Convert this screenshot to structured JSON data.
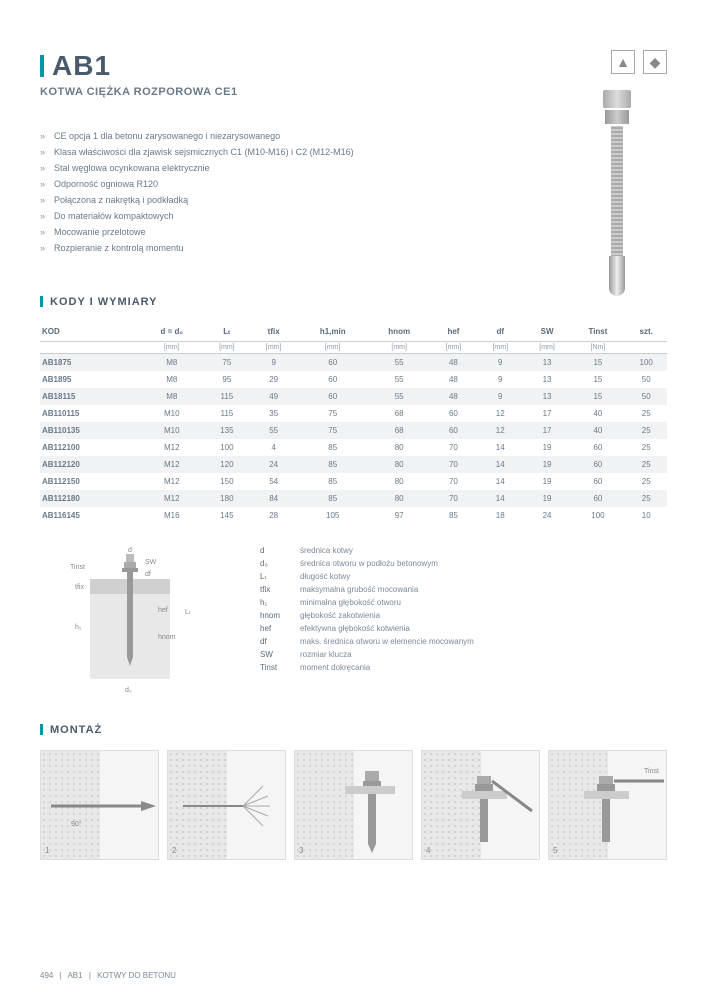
{
  "title": "AB1",
  "subtitle": "KOTWA CIĘŻKA ROZPOROWA CE1",
  "features": [
    "CE opcja 1 dla betonu zarysowanego i niezarysowanego",
    "Klasa właściwości dla zjawisk sejsmicznych C1 (M10-M16) i C2 (M12-M16)",
    "Stal węglowa ocynkowana elektrycznie",
    "Odporność ogniowa R120",
    "Połączona z nakrętką i podkładką",
    "Do materiałów kompaktowych",
    "Mocowanie przelotowe",
    "Rozpieranie z kontrolą momentu"
  ],
  "section1": "KODY I WYMIARY",
  "section2": "MONTAŻ",
  "table": {
    "headers": [
      "KOD",
      "d = d₀",
      "Lₜ",
      "tfix",
      "h1,min",
      "hnom",
      "hef",
      "df",
      "SW",
      "Tinst",
      "szt."
    ],
    "units": [
      "",
      "[mm]",
      "[mm]",
      "[mm]",
      "[mm]",
      "[mm]",
      "[mm]",
      "[mm]",
      "[mm]",
      "[Nm]",
      ""
    ],
    "rows": [
      [
        "AB1875",
        "M8",
        "75",
        "9",
        "60",
        "55",
        "48",
        "9",
        "13",
        "15",
        "100"
      ],
      [
        "AB1895",
        "M8",
        "95",
        "29",
        "60",
        "55",
        "48",
        "9",
        "13",
        "15",
        "50"
      ],
      [
        "AB18115",
        "M8",
        "115",
        "49",
        "60",
        "55",
        "48",
        "9",
        "13",
        "15",
        "50"
      ],
      [
        "AB110115",
        "M10",
        "115",
        "35",
        "75",
        "68",
        "60",
        "12",
        "17",
        "40",
        "25"
      ],
      [
        "AB110135",
        "M10",
        "135",
        "55",
        "75",
        "68",
        "60",
        "12",
        "17",
        "40",
        "25"
      ],
      [
        "AB112100",
        "M12",
        "100",
        "4",
        "85",
        "80",
        "70",
        "14",
        "19",
        "60",
        "25"
      ],
      [
        "AB112120",
        "M12",
        "120",
        "24",
        "85",
        "80",
        "70",
        "14",
        "19",
        "60",
        "25"
      ],
      [
        "AB112150",
        "M12",
        "150",
        "54",
        "85",
        "80",
        "70",
        "14",
        "19",
        "60",
        "25"
      ],
      [
        "AB112180",
        "M12",
        "180",
        "84",
        "85",
        "80",
        "70",
        "14",
        "19",
        "60",
        "25"
      ],
      [
        "AB116145",
        "M16",
        "145",
        "28",
        "105",
        "97",
        "85",
        "18",
        "24",
        "100",
        "10"
      ]
    ]
  },
  "legend": [
    [
      "d",
      "średnica kotwy"
    ],
    [
      "d₀",
      "średnica otworu w podłożu betonowym"
    ],
    [
      "Lₜ",
      "długość kotwy"
    ],
    [
      "tfix",
      "maksymalna grubość mocowania"
    ],
    [
      "h₁",
      "minimalna głębokość otworu"
    ],
    [
      "hnom",
      "głębokość zakotwienia"
    ],
    [
      "hef",
      "efektywna głębokość kotwienia"
    ],
    [
      "df",
      "maks. średnica otworu w elemencie mocowanym"
    ],
    [
      "SW",
      "rozmiar klucza"
    ],
    [
      "Tinst",
      "moment dokręcania"
    ]
  ],
  "diag_labels": {
    "d": "d",
    "d0": "d₀",
    "Tinst": "Tinst",
    "tfix": "tfix",
    "h1": "h₁",
    "SW": "SW",
    "df": "df",
    "Lt": "Lₜ",
    "hef": "hef",
    "hnom": "hnom"
  },
  "mont_labels": {
    "angle": "90°",
    "Tinst": "Tinst"
  },
  "footer": {
    "page": "494",
    "code": "AB1",
    "cat": "KOTWY DO BETONU"
  }
}
